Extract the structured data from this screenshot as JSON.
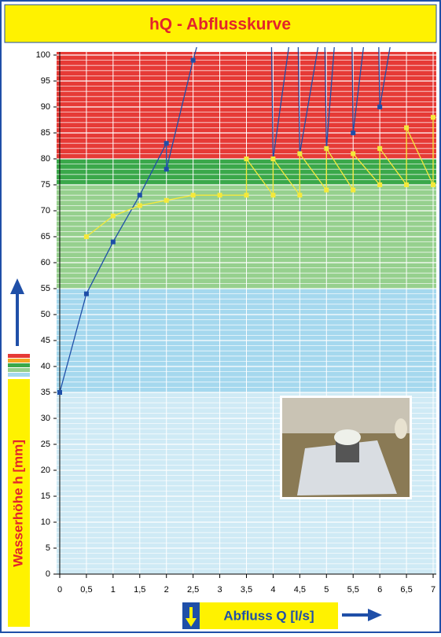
{
  "chart_data": {
    "type": "line",
    "title": "hQ - Abflusskurve",
    "y_label": "Wasserhöhe h [mm]",
    "x_label": "Abfluss Q [l/s]",
    "xlim": [
      0,
      7
    ],
    "ylim": [
      0,
      100
    ],
    "xticks": [
      0,
      {
        "value": 0.5,
        "label": "0,5"
      },
      1,
      {
        "value": 1.5,
        "label": "1,5"
      },
      2,
      {
        "value": 2.5,
        "label": "2,5"
      },
      3,
      {
        "value": 3.5,
        "label": "3,5"
      },
      4,
      {
        "value": 4.5,
        "label": "4,5"
      },
      5,
      {
        "value": 5.5,
        "label": "5,5"
      },
      6,
      {
        "value": 6.5,
        "label": "6,5"
      },
      7
    ],
    "yticks": [
      0,
      5,
      10,
      15,
      20,
      25,
      30,
      35,
      40,
      45,
      50,
      55,
      60,
      65,
      70,
      75,
      80,
      85,
      90,
      95,
      100
    ],
    "zones": [
      {
        "from": 0,
        "to": 35,
        "color": "#cfeaf5"
      },
      {
        "from": 35,
        "to": 55,
        "color": "#a5d8ee"
      },
      {
        "from": 55,
        "to": 75,
        "color": "#96d08e"
      },
      {
        "from": 75,
        "to": 80,
        "color": "#3aa84a"
      },
      {
        "from": 80,
        "to": 100,
        "color": "#e63a36"
      }
    ],
    "series": [
      {
        "color": "#1f4fa8",
        "x": [
          0,
          0.5,
          1,
          1.5,
          2,
          2,
          2.5,
          2.58,
          null,
          3.97,
          4,
          4.3,
          null,
          4.47,
          4.5,
          4.85,
          null,
          4.97,
          5,
          5.15,
          null,
          5.48,
          5.5,
          5.7,
          null,
          5.98,
          6,
          6.2
        ],
        "values": [
          35,
          54,
          64,
          73,
          83,
          78,
          99,
          102,
          null,
          102,
          80,
          102,
          null,
          102,
          81,
          102,
          null,
          102,
          82,
          102,
          null,
          102,
          85,
          102,
          null,
          102,
          90,
          102
        ]
      },
      {
        "color": "#f5e93a",
        "x": [
          0.5,
          1,
          1.5,
          2,
          2.5,
          3,
          3.5,
          3.5,
          4,
          4,
          4.5,
          4.5,
          5,
          5,
          5.5,
          5.5,
          6,
          6,
          6.5,
          6.5,
          7,
          7
        ],
        "values": [
          65,
          69,
          71,
          72,
          73,
          73,
          73,
          80,
          73,
          80,
          73,
          81,
          74,
          82,
          74,
          81,
          75,
          82,
          75,
          86,
          75,
          88
        ]
      }
    ]
  }
}
